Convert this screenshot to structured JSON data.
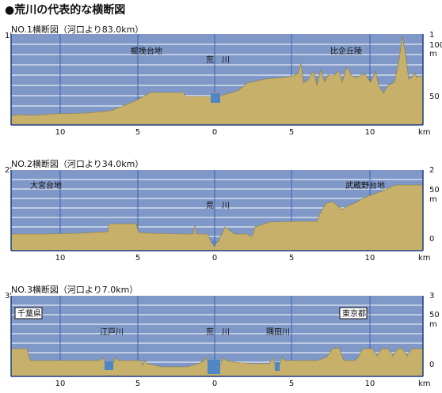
{
  "title": "●荒川の代表的な横断図",
  "x_ticks": [
    "10",
    "5",
    "0",
    "5",
    "10"
  ],
  "x_unit": "km",
  "colors": {
    "sky": "#7f98c7",
    "ground": "#c7b16a",
    "water": "#4f86c6",
    "grid": "#ffffff",
    "axis": "#1c3e84"
  },
  "sections": [
    {
      "id": "no1",
      "subtitle": "NO.1横断図（河口より83.0km）",
      "corner_label": "1'",
      "right_label": "1",
      "y_unit": "m",
      "y_ticks": [
        "100",
        "50"
      ],
      "labels": {
        "left_area": "櫛挽台地",
        "river": "荒　川",
        "right_area": "比企丘陵"
      }
    },
    {
      "id": "no2",
      "subtitle": "NO.2横断図（河口より34.0km）",
      "corner_label": "2'",
      "right_label": "2",
      "y_unit": "m",
      "y_ticks": [
        "50",
        "0"
      ],
      "labels": {
        "left_area": "大宮台地",
        "river": "荒　川",
        "right_area": "武蔵野台地"
      }
    },
    {
      "id": "no3",
      "subtitle": "NO.3横断図（河口より7.0km）",
      "corner_label": "3'",
      "right_label": "3",
      "y_unit": "m",
      "y_ticks": [
        "50",
        "0"
      ],
      "labels": {
        "left_box": "千葉県",
        "right_box": "東京都",
        "river_left": "江戸川",
        "river": "荒　川",
        "river_right": "隅田川"
      }
    }
  ]
}
